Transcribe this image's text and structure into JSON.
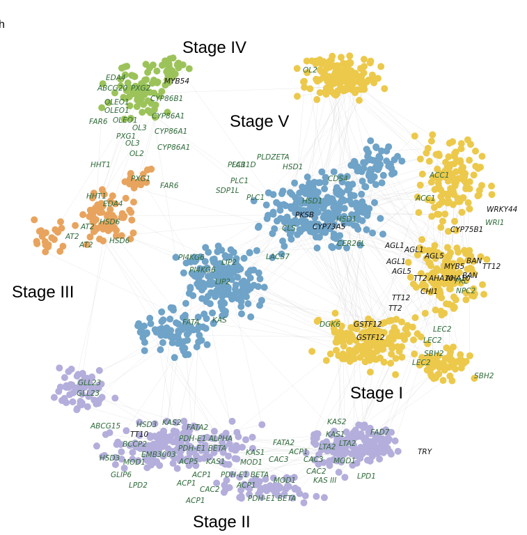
{
  "figure": {
    "panel_letter": "h",
    "clusters": [
      {
        "id": "stage-iv",
        "label": "Stage IV",
        "color": "#9cc35a"
      },
      {
        "id": "stage-iii",
        "label": "Stage III",
        "color": "#e8a45e"
      },
      {
        "id": "stage-v",
        "label": "Stage V",
        "color": "#6fa3c8"
      },
      {
        "id": "stage-i",
        "label": "Stage I",
        "color": "#ecc94b"
      },
      {
        "id": "stage-ii",
        "label": "Stage II",
        "color": "#b3aedb"
      }
    ],
    "label_colors": {
      "green": "#2f6a3a",
      "black": "#111111"
    },
    "genes": {
      "stage_iv": [
        "EDA4",
        "ABCG20",
        "PXG2",
        "MYB54",
        "CYP86B1",
        "OLEO1",
        "OLEO1",
        "FAR6",
        "OLEO1",
        "CYP86A1",
        "OL3",
        "PXG1",
        "CYP86A1",
        "OL3",
        "CYP86A1",
        "OL2"
      ],
      "stage_iii": [
        "HHT1",
        "PXG1",
        "FAR6",
        "HHT1",
        "EDA4",
        "AT2",
        "HSD6",
        "AT2",
        "AT2",
        "HSD6"
      ],
      "stage_v": [
        "PLDZETA",
        "FAB1D",
        "HSD1",
        "PLC1",
        "PLC1",
        "CDS4",
        "SDP1L",
        "PLC1",
        "HSD1",
        "PKSB",
        "CYP73A5",
        "HSD1",
        "CLS",
        "CER26L",
        "PI4KG6",
        "LACS7",
        "LIP2",
        "PI4KG6",
        "LIP2",
        "FATA",
        "KAS"
      ],
      "stage_i": [
        "OL2",
        "ACC1",
        "ACC1",
        "WRKY44",
        "WRI1",
        "CYP75B1",
        "AGL1",
        "AGL1",
        "AGL5",
        "AGL1",
        "BAN",
        "AGL5",
        "MYB5",
        "TT12",
        "TT2",
        "AHA10",
        "BAN",
        "AHA10",
        "PKL",
        "CHI1",
        "NPC2",
        "TT12",
        "TT2",
        "DGK6",
        "GSTF12",
        "GSTF12",
        "LEC2",
        "LEC2",
        "SBH2",
        "LEC2",
        "SBH2"
      ],
      "stage_ii": [
        "GLL23",
        "GLL23",
        "ABCG15",
        "HSD3",
        "KAS2",
        "FATA2",
        "TT10",
        "PDH-E1 ALPHA",
        "BCCP2",
        "PDH-E1 BETA",
        "EMB3003",
        "HSD3",
        "MOD1",
        "ACP5",
        "KAS1",
        "GLIP6",
        "LPD2",
        "ACP1",
        "CAC2",
        "ACP1",
        "ACP1",
        "KAS1",
        "MOD1",
        "CAC3",
        "PDH-E1 BETA",
        "ACP1",
        "MOD1",
        "PDH-E1 BETA",
        "ACP1",
        "KAS2",
        "KAS1",
        "FAD7",
        "FATA2",
        "LTA2",
        "LTA2",
        "CAC3",
        "MOD1",
        "TRY",
        "CAC2",
        "LPD1",
        "KAS III"
      ]
    }
  }
}
